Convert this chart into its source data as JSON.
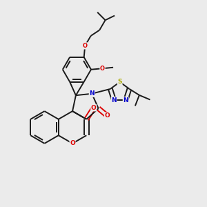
{
  "background_color": "#ebebeb",
  "bond_color": "#1a1a1a",
  "oxygen_color": "#dd0000",
  "nitrogen_color": "#0000cc",
  "sulfur_color": "#aaaa00",
  "line_width": 1.4,
  "figsize": [
    3.0,
    3.0
  ],
  "dpi": 100,
  "xlim": [
    0,
    10
  ],
  "ylim": [
    0,
    10
  ]
}
